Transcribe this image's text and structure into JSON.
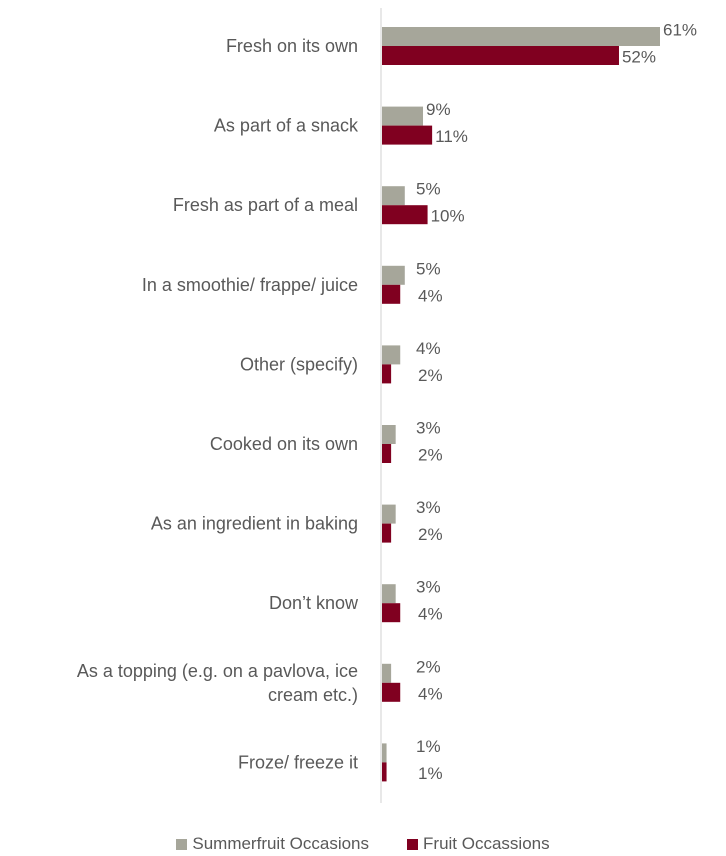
{
  "chart_data": {
    "type": "bar",
    "orientation": "horizontal",
    "categories": [
      "Fresh on its own",
      "As part of a snack",
      "Fresh as part of a meal",
      "In a smoothie/ frappe/ juice",
      "Other (specify)",
      "Cooked on its own",
      "As an ingredient in baking",
      "Don’t know",
      "As a topping (e.g. on a pavlova, ice cream etc.)",
      "Froze/ freeze it"
    ],
    "category_lines": [
      [
        "Fresh on its own"
      ],
      [
        "As part of a snack"
      ],
      [
        "Fresh as part of a meal"
      ],
      [
        "In a smoothie/ frappe/ juice"
      ],
      [
        "Other (specify)"
      ],
      [
        "Cooked on its own"
      ],
      [
        "As an ingredient in baking"
      ],
      [
        "Don’t know"
      ],
      [
        "As a topping (e.g. on a pavlova, ice",
        "cream etc.)"
      ],
      [
        "Froze/ freeze it"
      ]
    ],
    "series": [
      {
        "name": "Summerfruit Occasions",
        "color": "#a6a69a",
        "values": [
          61,
          9,
          5,
          5,
          4,
          3,
          3,
          3,
          2,
          1
        ],
        "labels": [
          "61%",
          "9%",
          "5%",
          "5%",
          "4%",
          "3%",
          "3%",
          "3%",
          "2%",
          "1%"
        ]
      },
      {
        "name": "Fruit Occassions",
        "color": "#800020",
        "values": [
          52,
          11,
          10,
          4,
          2,
          2,
          2,
          4,
          4,
          1
        ],
        "labels": [
          "52%",
          "11%",
          "10%",
          "4%",
          "2%",
          "2%",
          "2%",
          "4%",
          "4%",
          "1%"
        ]
      }
    ],
    "unit": "%",
    "xlim": [
      0,
      61
    ],
    "grid": false,
    "legend_position": "bottom"
  }
}
